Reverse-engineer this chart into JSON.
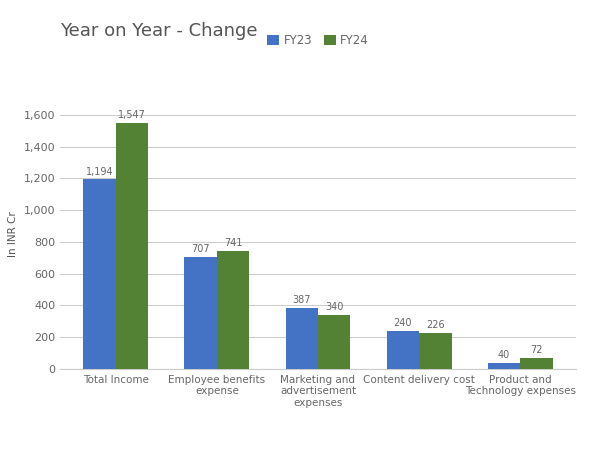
{
  "title": "Year on Year - Change",
  "ylabel": "In INR Cr",
  "categories": [
    "Total Income",
    "Employee benefits\nexpense",
    "Marketing and\nadvertisement\nexpenses",
    "Content delivery cost",
    "Product and\nTechnology expenses"
  ],
  "fy23_values": [
    1194,
    707,
    387,
    240,
    40
  ],
  "fy24_values": [
    1547,
    741,
    340,
    226,
    72
  ],
  "fy23_label": "FY23",
  "fy24_label": "FY24",
  "fy23_color": "#4472C4",
  "fy24_color": "#548235",
  "bar_width": 0.32,
  "ylim": [
    0,
    1700
  ],
  "yticks": [
    0,
    200,
    400,
    600,
    800,
    1000,
    1200,
    1400,
    1600
  ],
  "background_color": "#ffffff",
  "grid_color": "#cccccc",
  "title_fontsize": 13,
  "label_fontsize": 7.5,
  "tick_fontsize": 8,
  "value_fontsize": 7,
  "legend_fontsize": 8.5,
  "title_color": "#555555",
  "tick_color": "#666666",
  "ylabel_color": "#555555"
}
